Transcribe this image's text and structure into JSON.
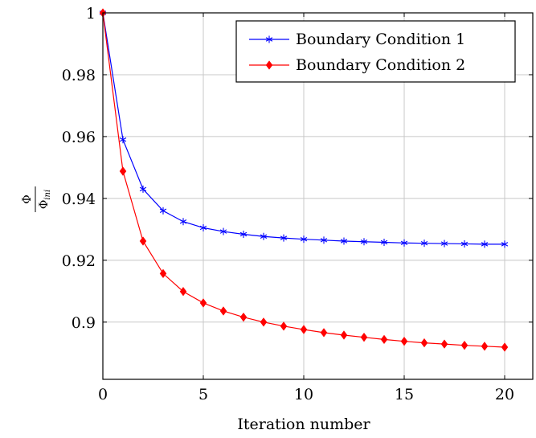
{
  "chart_data": {
    "type": "line",
    "title": "",
    "xlabel": "Iteration number",
    "ylabel": "Φ / Φini",
    "ylabel_parts": {
      "numerator": "Φ",
      "denominator": "Φ",
      "denominator_sub": "ini"
    },
    "xlim": [
      0,
      21.4
    ],
    "ylim": [
      0.8815,
      1.0
    ],
    "x_ticks": [
      0,
      5,
      10,
      15,
      20
    ],
    "x_tick_labels": [
      "0",
      "5",
      "10",
      "15",
      "20"
    ],
    "y_ticks": [
      0.9,
      0.92,
      0.94,
      0.96,
      0.98,
      1.0
    ],
    "y_tick_labels": [
      "0.9",
      "0.92",
      "0.94",
      "0.96",
      "0.98",
      "1"
    ],
    "grid": true,
    "legend_position": "top-right",
    "x": [
      0,
      1,
      2,
      3,
      4,
      5,
      6,
      7,
      8,
      9,
      10,
      11,
      12,
      13,
      14,
      15,
      16,
      17,
      18,
      19,
      20
    ],
    "series": [
      {
        "name": "Boundary Condition 1",
        "color": "#0000ff",
        "marker": "asterisk",
        "values": [
          1.0,
          0.959,
          0.943,
          0.936,
          0.9325,
          0.9305,
          0.9293,
          0.9284,
          0.9277,
          0.9272,
          0.9268,
          0.9265,
          0.9262,
          0.926,
          0.9258,
          0.9256,
          0.9255,
          0.9254,
          0.9253,
          0.9252,
          0.9252
        ]
      },
      {
        "name": "Boundary Condition 2",
        "color": "#ff0000",
        "marker": "diamond",
        "values": [
          1.0,
          0.9488,
          0.9262,
          0.9157,
          0.9099,
          0.9062,
          0.9036,
          0.9016,
          0.9,
          0.8987,
          0.8976,
          0.8966,
          0.8958,
          0.8951,
          0.8944,
          0.8938,
          0.8933,
          0.8929,
          0.8925,
          0.8922,
          0.8919
        ]
      }
    ]
  }
}
